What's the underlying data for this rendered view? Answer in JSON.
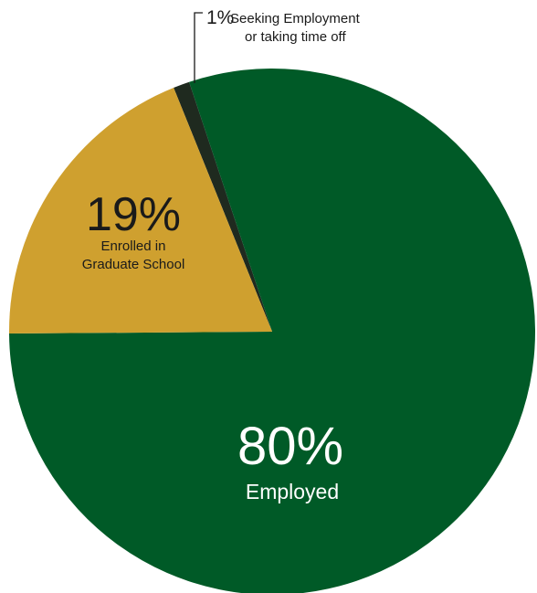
{
  "chart_data": {
    "type": "pie",
    "title": "",
    "slices": [
      {
        "pct_label": "80%",
        "value": 80,
        "label_lines": [
          "Employed"
        ],
        "color": "#005a27",
        "text_color": "#ffffff"
      },
      {
        "pct_label": "19%",
        "value": 19,
        "label_lines": [
          "Enrolled in",
          "Graduate School"
        ],
        "color": "#cfa02f",
        "text_color": "#1a1a1a"
      },
      {
        "pct_label": "1%",
        "value": 1,
        "label_lines": [
          "Seeking Employment",
          "or taking time off"
        ],
        "color": "#1f2a1f",
        "text_color": "#1a1a1a"
      }
    ]
  }
}
